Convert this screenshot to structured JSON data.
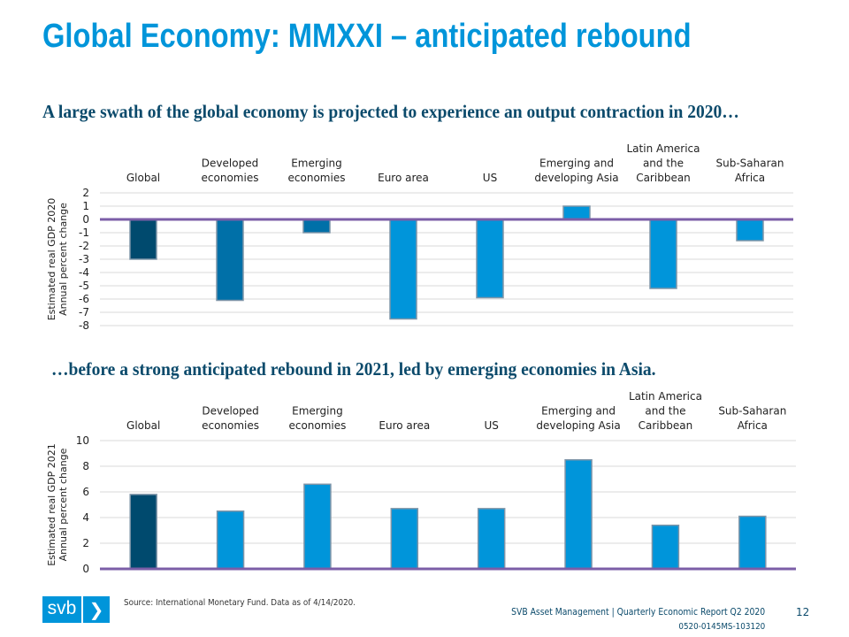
{
  "title": "Global Economy: MMXXI – anticipated rebound",
  "subtitle_top": "A large swath of the global economy is projected to experience an output contraction in 2020…",
  "subtitle_bottom": "…before a strong anticipated rebound in 2021, led by emerging economies in Asia.",
  "footer": {
    "logo_text": "svb",
    "source": "Source: International Monetary Fund. Data as of 4/14/2020.",
    "report": "SVB Asset Management | Quarterly Economic Report Q2 2020",
    "code": "0520-0145MS-103120",
    "page_number": "12"
  },
  "chart_data": [
    {
      "type": "bar",
      "categories": [
        "Global",
        "Developed\neconomies",
        "Emerging\neconomies",
        "Euro area",
        "US",
        "Emerging and\ndeveloping Asia",
        "Latin America\nand the\nCaribbean",
        "Sub-Saharan\nAfrica"
      ],
      "values": [
        -3.0,
        -6.1,
        -1.0,
        -7.5,
        -5.9,
        1.0,
        -5.2,
        -1.6
      ],
      "colors": [
        "#004A6E",
        "#0070A8",
        "#0070A8",
        "#0095DA",
        "#0095DA",
        "#0095DA",
        "#0095DA",
        "#0095DA"
      ],
      "ylabel": "Estimated real GDP 2020\nAnnual percent change",
      "ylim": [
        -8,
        2
      ],
      "yticks": [
        2,
        1,
        0,
        -1,
        -2,
        -3,
        -4,
        -5,
        -6,
        -7,
        -8
      ],
      "grid": true,
      "zero_line_color": "#7B5EA7"
    },
    {
      "type": "bar",
      "categories": [
        "Global",
        "Developed\neconomies",
        "Emerging\neconomies",
        "Euro area",
        "US",
        "Emerging and\ndeveloping Asia",
        "Latin America\nand the\nCaribbean",
        "Sub-Saharan\nAfrica"
      ],
      "values": [
        5.8,
        4.5,
        6.6,
        4.7,
        4.7,
        8.5,
        3.4,
        4.1
      ],
      "colors": [
        "#004A6E",
        "#0095DA",
        "#0095DA",
        "#0095DA",
        "#0095DA",
        "#0095DA",
        "#0095DA",
        "#0095DA"
      ],
      "ylabel": "Estimated real GDP 2021\nAnnual percent change",
      "ylim": [
        0,
        10
      ],
      "yticks": [
        10,
        8,
        6,
        4,
        2,
        0
      ],
      "grid": true,
      "zero_line_color": "#7B5EA7"
    }
  ]
}
